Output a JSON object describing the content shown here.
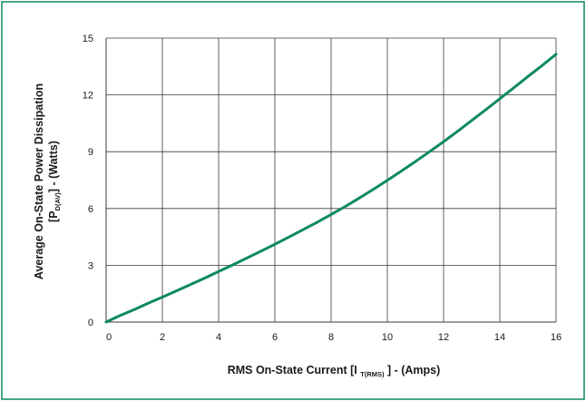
{
  "colors": {
    "frame": "#0e8a5c",
    "curve": "#0e8a5c",
    "grid": "#3a3a3a",
    "text": "#1a1a1a"
  },
  "chart_data": {
    "type": "line",
    "grid": true,
    "legend": "none",
    "xlim": [
      0,
      16
    ],
    "ylim": [
      0,
      15
    ],
    "x_ticks": [
      0,
      2,
      4,
      6,
      8,
      10,
      12,
      14,
      16
    ],
    "y_ticks": [
      0,
      3,
      6,
      9,
      12,
      15
    ],
    "xlabel": {
      "prefix": "RMS On-State Current [I ",
      "subscript": "T(RMS)",
      "suffix": " ] - (Amps)"
    },
    "ylabel": {
      "line1": "Average On-State Power Dissipation",
      "line2_prefix": "[P",
      "line2_subscript": "D(AV)",
      "line2_suffix": "] - (Watts)"
    },
    "series": [
      {
        "x": [
          0,
          0.5,
          1,
          1.5,
          2,
          2.5,
          3,
          3.5,
          4,
          4.5,
          5,
          5.5,
          6,
          6.5,
          7,
          7.5,
          8,
          8.5,
          9,
          9.5,
          10,
          10.5,
          11,
          11.5,
          12,
          12.5,
          13,
          13.5,
          14,
          14.5,
          15,
          15.5,
          16
        ],
        "y": [
          0,
          0.35,
          0.66,
          1.0,
          1.32,
          1.65,
          1.98,
          2.32,
          2.67,
          3.02,
          3.38,
          3.74,
          4.11,
          4.49,
          4.88,
          5.27,
          5.68,
          6.1,
          6.55,
          7.01,
          7.49,
          7.98,
          8.48,
          9.0,
          9.53,
          10.08,
          10.65,
          11.22,
          11.8,
          12.38,
          12.97,
          13.55,
          14.15
        ]
      }
    ]
  }
}
